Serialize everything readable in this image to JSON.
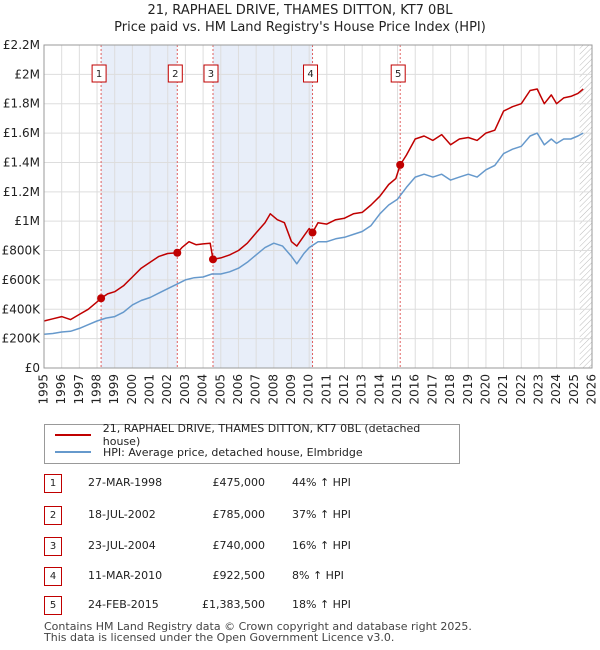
{
  "chart_data": {
    "type": "line",
    "title": "21, RAPHAEL DRIVE, THAMES DITTON, KT7 0BL",
    "subtitle": "Price paid vs. HM Land Registry's House Price Index (HPI)",
    "xlim": [
      1995,
      2026
    ],
    "ylim": [
      0,
      2200000
    ],
    "x_ticks": [
      "1995",
      "1996",
      "1997",
      "1998",
      "1999",
      "2000",
      "2001",
      "2002",
      "2003",
      "2004",
      "2005",
      "2006",
      "2007",
      "2008",
      "2009",
      "2010",
      "2011",
      "2012",
      "2013",
      "2014",
      "2015",
      "2016",
      "2017",
      "2018",
      "2019",
      "2020",
      "2021",
      "2022",
      "2023",
      "2024",
      "2025",
      "2026"
    ],
    "y_ticks": [
      {
        "value": 0,
        "label": "£0"
      },
      {
        "value": 200000,
        "label": "£200K"
      },
      {
        "value": 400000,
        "label": "£400K"
      },
      {
        "value": 600000,
        "label": "£600K"
      },
      {
        "value": 800000,
        "label": "£800K"
      },
      {
        "value": 1000000,
        "label": "£1M"
      },
      {
        "value": 1200000,
        "label": "£1.2M"
      },
      {
        "value": 1400000,
        "label": "£1.4M"
      },
      {
        "value": 1600000,
        "label": "£1.6M"
      },
      {
        "value": 1800000,
        "label": "£1.8M"
      },
      {
        "value": 2000000,
        "label": "£2M"
      },
      {
        "value": 2200000,
        "label": "£2.2M"
      }
    ],
    "grid": true,
    "series": [
      {
        "name": "21, RAPHAEL DRIVE, THAMES DITTON, KT7 0BL (detached house)",
        "color": "#c00000",
        "points": [
          [
            1995.0,
            320000
          ],
          [
            1995.5,
            335000
          ],
          [
            1996.0,
            350000
          ],
          [
            1996.5,
            330000
          ],
          [
            1997.0,
            365000
          ],
          [
            1997.5,
            400000
          ],
          [
            1998.0,
            450000
          ],
          [
            1998.23,
            475000
          ],
          [
            1998.6,
            505000
          ],
          [
            1999.0,
            520000
          ],
          [
            1999.5,
            560000
          ],
          [
            2000.0,
            620000
          ],
          [
            2000.5,
            680000
          ],
          [
            2001.0,
            720000
          ],
          [
            2001.5,
            760000
          ],
          [
            2002.0,
            780000
          ],
          [
            2002.54,
            785000
          ],
          [
            2002.8,
            820000
          ],
          [
            2003.2,
            860000
          ],
          [
            2003.6,
            840000
          ],
          [
            2004.0,
            845000
          ],
          [
            2004.4,
            850000
          ],
          [
            2004.56,
            740000
          ],
          [
            2005.0,
            750000
          ],
          [
            2005.5,
            770000
          ],
          [
            2006.0,
            800000
          ],
          [
            2006.5,
            850000
          ],
          [
            2007.0,
            920000
          ],
          [
            2007.5,
            990000
          ],
          [
            2007.8,
            1050000
          ],
          [
            2008.2,
            1010000
          ],
          [
            2008.6,
            990000
          ],
          [
            2009.0,
            860000
          ],
          [
            2009.3,
            830000
          ],
          [
            2009.7,
            900000
          ],
          [
            2010.0,
            950000
          ],
          [
            2010.19,
            922500
          ],
          [
            2010.5,
            990000
          ],
          [
            2011.0,
            980000
          ],
          [
            2011.5,
            1010000
          ],
          [
            2012.0,
            1020000
          ],
          [
            2012.5,
            1050000
          ],
          [
            2013.0,
            1060000
          ],
          [
            2013.5,
            1110000
          ],
          [
            2014.0,
            1170000
          ],
          [
            2014.5,
            1250000
          ],
          [
            2014.9,
            1290000
          ],
          [
            2015.15,
            1383500
          ],
          [
            2015.5,
            1450000
          ],
          [
            2016.0,
            1560000
          ],
          [
            2016.5,
            1580000
          ],
          [
            2017.0,
            1550000
          ],
          [
            2017.5,
            1590000
          ],
          [
            2018.0,
            1520000
          ],
          [
            2018.5,
            1560000
          ],
          [
            2019.0,
            1570000
          ],
          [
            2019.5,
            1550000
          ],
          [
            2020.0,
            1600000
          ],
          [
            2020.5,
            1620000
          ],
          [
            2021.0,
            1750000
          ],
          [
            2021.5,
            1780000
          ],
          [
            2022.0,
            1800000
          ],
          [
            2022.5,
            1890000
          ],
          [
            2022.9,
            1900000
          ],
          [
            2023.3,
            1800000
          ],
          [
            2023.7,
            1860000
          ],
          [
            2024.0,
            1800000
          ],
          [
            2024.4,
            1840000
          ],
          [
            2024.8,
            1850000
          ],
          [
            2025.2,
            1870000
          ],
          [
            2025.5,
            1900000
          ]
        ]
      },
      {
        "name": "HPI: Average price, detached house, Elmbridge",
        "color": "#6699cc",
        "points": [
          [
            1995.0,
            230000
          ],
          [
            1995.5,
            235000
          ],
          [
            1996.0,
            245000
          ],
          [
            1996.5,
            250000
          ],
          [
            1997.0,
            270000
          ],
          [
            1997.5,
            295000
          ],
          [
            1998.0,
            320000
          ],
          [
            1998.5,
            340000
          ],
          [
            1999.0,
            350000
          ],
          [
            1999.5,
            380000
          ],
          [
            2000.0,
            430000
          ],
          [
            2000.5,
            460000
          ],
          [
            2001.0,
            480000
          ],
          [
            2001.5,
            510000
          ],
          [
            2002.0,
            540000
          ],
          [
            2002.5,
            570000
          ],
          [
            2003.0,
            600000
          ],
          [
            2003.5,
            615000
          ],
          [
            2004.0,
            620000
          ],
          [
            2004.5,
            640000
          ],
          [
            2005.0,
            640000
          ],
          [
            2005.5,
            655000
          ],
          [
            2006.0,
            680000
          ],
          [
            2006.5,
            720000
          ],
          [
            2007.0,
            770000
          ],
          [
            2007.5,
            820000
          ],
          [
            2008.0,
            850000
          ],
          [
            2008.5,
            830000
          ],
          [
            2009.0,
            760000
          ],
          [
            2009.3,
            710000
          ],
          [
            2009.7,
            780000
          ],
          [
            2010.0,
            820000
          ],
          [
            2010.5,
            860000
          ],
          [
            2011.0,
            860000
          ],
          [
            2011.5,
            880000
          ],
          [
            2012.0,
            890000
          ],
          [
            2012.5,
            910000
          ],
          [
            2013.0,
            930000
          ],
          [
            2013.5,
            970000
          ],
          [
            2014.0,
            1050000
          ],
          [
            2014.5,
            1110000
          ],
          [
            2015.0,
            1150000
          ],
          [
            2015.5,
            1230000
          ],
          [
            2016.0,
            1300000
          ],
          [
            2016.5,
            1320000
          ],
          [
            2017.0,
            1300000
          ],
          [
            2017.5,
            1320000
          ],
          [
            2018.0,
            1280000
          ],
          [
            2018.5,
            1300000
          ],
          [
            2019.0,
            1320000
          ],
          [
            2019.5,
            1300000
          ],
          [
            2020.0,
            1350000
          ],
          [
            2020.5,
            1380000
          ],
          [
            2021.0,
            1460000
          ],
          [
            2021.5,
            1490000
          ],
          [
            2022.0,
            1510000
          ],
          [
            2022.5,
            1580000
          ],
          [
            2022.9,
            1600000
          ],
          [
            2023.3,
            1520000
          ],
          [
            2023.7,
            1560000
          ],
          [
            2024.0,
            1530000
          ],
          [
            2024.4,
            1560000
          ],
          [
            2024.8,
            1560000
          ],
          [
            2025.2,
            1580000
          ],
          [
            2025.5,
            1600000
          ]
        ]
      }
    ],
    "annotations": [
      {
        "label": "1",
        "x": 1998.23,
        "y": 475000
      },
      {
        "label": "2",
        "x": 2002.54,
        "y": 785000
      },
      {
        "label": "3",
        "x": 2004.56,
        "y": 740000
      },
      {
        "label": "4",
        "x": 2010.19,
        "y": 922500
      },
      {
        "label": "5",
        "x": 2015.15,
        "y": 1383500
      }
    ],
    "shaded_periods": [
      [
        1998.23,
        2002.54
      ],
      [
        2004.56,
        2010.19
      ]
    ],
    "hatched_after": 2025.3
  },
  "legend": {
    "property": "21, RAPHAEL DRIVE, THAMES DITTON, KT7 0BL (detached house)",
    "hpi": "HPI: Average price, detached house, Elmbridge",
    "property_color": "#c00000",
    "hpi_color": "#6699cc"
  },
  "transactions": [
    {
      "num": "1",
      "date": "27-MAR-1998",
      "price": "£475,000",
      "hpi": "44% ↑ HPI"
    },
    {
      "num": "2",
      "date": "18-JUL-2002",
      "price": "£785,000",
      "hpi": "37% ↑ HPI"
    },
    {
      "num": "3",
      "date": "23-JUL-2004",
      "price": "£740,000",
      "hpi": "16% ↑ HPI"
    },
    {
      "num": "4",
      "date": "11-MAR-2010",
      "price": "£922,500",
      "hpi": "8% ↑ HPI"
    },
    {
      "num": "5",
      "date": "24-FEB-2015",
      "price": "£1,383,500",
      "hpi": "18% ↑ HPI"
    }
  ],
  "footer": {
    "line1": "Contains HM Land Registry data © Crown copyright and database right 2025.",
    "line2": "This data is licensed under the Open Government Licence v3.0."
  }
}
